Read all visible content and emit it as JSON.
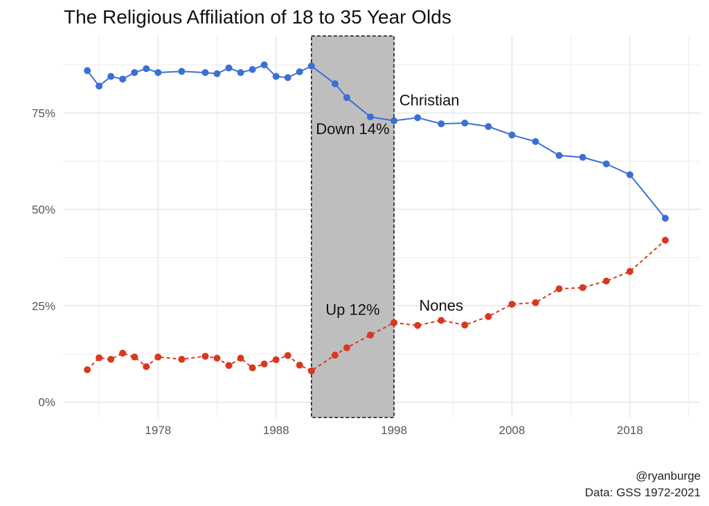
{
  "title": "The Religious Affiliation of 18 to 35 Year Olds",
  "caption_lines": [
    "@ryanburge",
    "Data: GSS 1972-2021"
  ],
  "colors": {
    "christian": "#3a6fd6",
    "nones": "#d9381e",
    "band": "#bebebe",
    "grid": "#ebebeb"
  },
  "chart_data": {
    "type": "line",
    "xlim": [
      1970,
      2024
    ],
    "ylim": [
      -0.04,
      0.95
    ],
    "x_ticks": [
      1978,
      1988,
      1998,
      2008,
      2018
    ],
    "x_tick_labels": [
      "1978",
      "1988",
      "1998",
      "2008",
      "2018"
    ],
    "y_ticks": [
      0,
      0.25,
      0.5,
      0.75
    ],
    "y_tick_labels": [
      "0%",
      "25%",
      "50%",
      "75%"
    ],
    "grid": true,
    "highlight_band": {
      "x": [
        1991,
        1998
      ]
    },
    "series": [
      {
        "name": "Christian",
        "line_style": "solid",
        "x": [
          1972,
          1973,
          1974,
          1975,
          1976,
          1977,
          1978,
          1980,
          1982,
          1983,
          1984,
          1985,
          1986,
          1987,
          1988,
          1989,
          1990,
          1991,
          1993,
          1994,
          1996,
          1998,
          2000,
          2002,
          2004,
          2006,
          2008,
          2010,
          2012,
          2014,
          2016,
          2018,
          2021
        ],
        "y": [
          0.86,
          0.82,
          0.845,
          0.838,
          0.855,
          0.865,
          0.855,
          0.858,
          0.855,
          0.852,
          0.867,
          0.855,
          0.863,
          0.875,
          0.845,
          0.842,
          0.857,
          0.872,
          0.826,
          0.79,
          0.74,
          0.73,
          0.738,
          0.722,
          0.724,
          0.715,
          0.693,
          0.676,
          0.64,
          0.635,
          0.618,
          0.59,
          0.477
        ]
      },
      {
        "name": "Nones",
        "line_style": "dashed",
        "x": [
          1972,
          1973,
          1974,
          1975,
          1976,
          1977,
          1978,
          1980,
          1982,
          1983,
          1984,
          1985,
          1986,
          1987,
          1988,
          1989,
          1990,
          1991,
          1993,
          1994,
          1996,
          1998,
          2000,
          2002,
          2004,
          2006,
          2008,
          2010,
          2012,
          2014,
          2016,
          2018,
          2021
        ],
        "y": [
          0.084,
          0.115,
          0.111,
          0.127,
          0.117,
          0.092,
          0.117,
          0.111,
          0.119,
          0.114,
          0.095,
          0.114,
          0.089,
          0.099,
          0.11,
          0.121,
          0.096,
          0.081,
          0.122,
          0.141,
          0.174,
          0.206,
          0.199,
          0.212,
          0.2,
          0.222,
          0.254,
          0.258,
          0.294,
          0.297,
          0.314,
          0.339,
          0.42
        ]
      }
    ],
    "annotations": [
      {
        "text": "Christian",
        "x": 2001,
        "y": 0.77
      },
      {
        "text": "Down 14%",
        "x": 1994.5,
        "y": 0.695
      },
      {
        "text": "Nones",
        "x": 2002,
        "y": 0.237
      },
      {
        "text": "Up 12%",
        "x": 1994.5,
        "y": 0.226
      }
    ]
  }
}
